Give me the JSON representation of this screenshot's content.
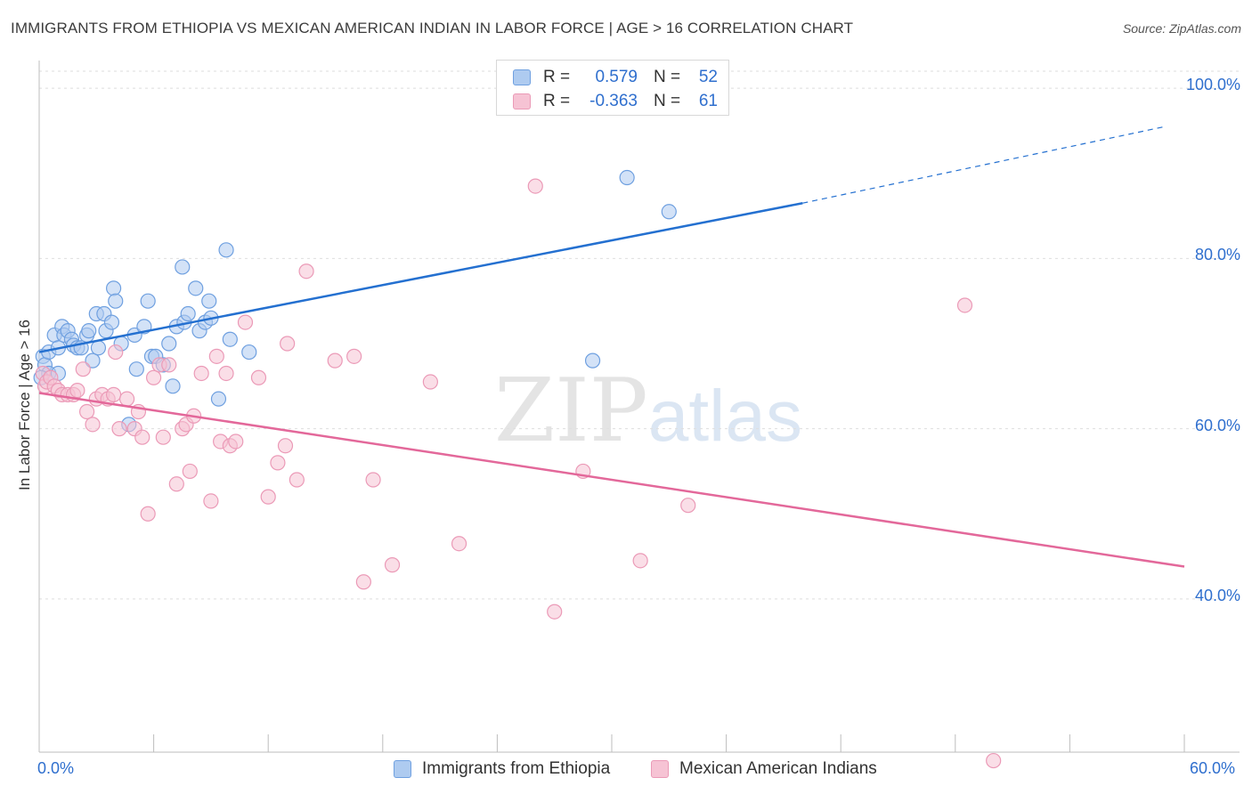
{
  "chart_data": {
    "type": "scatter",
    "title": "IMMIGRANTS FROM ETHIOPIA VS MEXICAN AMERICAN INDIAN IN LABOR FORCE | AGE > 16 CORRELATION CHART",
    "source": "Source: ZipAtlas.com",
    "xlabel": "",
    "ylabel": "In Labor Force | Age > 16",
    "xlim": [
      0,
      60
    ],
    "ylim": [
      22,
      102
    ],
    "x_tick_labels": [
      "0.0%",
      "60.0%"
    ],
    "y_ticks": [
      40,
      60,
      80,
      100
    ],
    "y_tick_labels": [
      "40.0%",
      "60.0%",
      "80.0%",
      "100.0%"
    ],
    "watermark": {
      "zip": "ZIP",
      "atlas": "atlas"
    },
    "legend_stats": [
      {
        "r_label": "R =",
        "r_value": "0.579",
        "n_label": "N =",
        "n_value": "52"
      },
      {
        "r_label": "R =",
        "r_value": "-0.363",
        "n_label": "N =",
        "n_value": "61"
      }
    ],
    "series": [
      {
        "name": "Immigrants from Ethiopia",
        "color": "#6fa0e0",
        "fill": "#aecbf0",
        "trend_color": "#2470d0",
        "trend": {
          "x0": 0,
          "y0": 69.0,
          "x1": 40,
          "y1": 86.5,
          "dash_to_x": 59,
          "dash_to_y": 95.5
        },
        "points": [
          [
            0.2,
            68.5
          ],
          [
            0.3,
            67.5
          ],
          [
            0.5,
            69.0
          ],
          [
            0.5,
            66.5
          ],
          [
            0.8,
            71.0
          ],
          [
            1.0,
            69.5
          ],
          [
            1.2,
            72.0
          ],
          [
            1.3,
            71.0
          ],
          [
            1.5,
            71.5
          ],
          [
            1.7,
            70.5
          ],
          [
            1.8,
            69.8
          ],
          [
            2.0,
            69.5
          ],
          [
            2.2,
            69.5
          ],
          [
            2.5,
            71.0
          ],
          [
            2.6,
            71.5
          ],
          [
            2.8,
            68.0
          ],
          [
            3.0,
            73.5
          ],
          [
            3.1,
            69.5
          ],
          [
            3.4,
            73.5
          ],
          [
            3.5,
            71.5
          ],
          [
            3.8,
            72.5
          ],
          [
            3.9,
            76.5
          ],
          [
            4.0,
            75.0
          ],
          [
            4.3,
            70.0
          ],
          [
            4.7,
            60.5
          ],
          [
            5.0,
            71.0
          ],
          [
            5.1,
            67.0
          ],
          [
            5.5,
            72.0
          ],
          [
            5.7,
            75.0
          ],
          [
            5.9,
            68.5
          ],
          [
            6.1,
            68.5
          ],
          [
            6.5,
            67.5
          ],
          [
            6.8,
            70.0
          ],
          [
            7.0,
            65.0
          ],
          [
            7.2,
            72.0
          ],
          [
            7.5,
            79.0
          ],
          [
            7.6,
            72.5
          ],
          [
            7.8,
            73.5
          ],
          [
            8.2,
            76.5
          ],
          [
            8.4,
            71.5
          ],
          [
            8.7,
            72.5
          ],
          [
            8.9,
            75.0
          ],
          [
            9.0,
            73.0
          ],
          [
            9.4,
            63.5
          ],
          [
            9.8,
            81.0
          ],
          [
            10.0,
            70.5
          ],
          [
            11.0,
            69.0
          ],
          [
            29.0,
            68.0
          ],
          [
            30.8,
            89.5
          ],
          [
            33.0,
            85.5
          ],
          [
            0.1,
            66.0
          ],
          [
            1.0,
            66.5
          ]
        ]
      },
      {
        "name": "Mexican American Indians",
        "color": "#eb9ab7",
        "fill": "#f6c3d4",
        "trend_color": "#e3689a",
        "trend": {
          "x0": 0,
          "y0": 64.2,
          "x1": 60,
          "y1": 43.8
        },
        "points": [
          [
            0.2,
            66.5
          ],
          [
            0.3,
            65.0
          ],
          [
            0.4,
            65.5
          ],
          [
            0.6,
            66.0
          ],
          [
            0.8,
            65.0
          ],
          [
            1.0,
            64.5
          ],
          [
            1.2,
            64.0
          ],
          [
            1.5,
            64.0
          ],
          [
            1.8,
            64.0
          ],
          [
            2.0,
            64.5
          ],
          [
            2.3,
            67.0
          ],
          [
            2.5,
            62.0
          ],
          [
            2.8,
            60.5
          ],
          [
            3.0,
            63.5
          ],
          [
            3.3,
            64.0
          ],
          [
            3.6,
            63.5
          ],
          [
            3.9,
            64.0
          ],
          [
            4.0,
            69.0
          ],
          [
            4.2,
            60.0
          ],
          [
            4.6,
            63.5
          ],
          [
            5.0,
            60.0
          ],
          [
            5.2,
            62.0
          ],
          [
            5.4,
            59.0
          ],
          [
            5.7,
            50.0
          ],
          [
            6.0,
            66.0
          ],
          [
            6.3,
            67.5
          ],
          [
            6.5,
            59.0
          ],
          [
            6.8,
            67.5
          ],
          [
            7.2,
            53.5
          ],
          [
            7.5,
            60.0
          ],
          [
            7.7,
            60.5
          ],
          [
            7.9,
            55.0
          ],
          [
            8.1,
            61.5
          ],
          [
            8.5,
            66.5
          ],
          [
            9.0,
            51.5
          ],
          [
            9.3,
            68.5
          ],
          [
            9.5,
            58.5
          ],
          [
            9.8,
            66.5
          ],
          [
            10.0,
            58.0
          ],
          [
            10.3,
            58.5
          ],
          [
            10.8,
            72.5
          ],
          [
            11.5,
            66.0
          ],
          [
            12.0,
            52.0
          ],
          [
            12.5,
            56.0
          ],
          [
            12.9,
            58.0
          ],
          [
            13.0,
            70.0
          ],
          [
            13.5,
            54.0
          ],
          [
            14.0,
            78.5
          ],
          [
            15.5,
            68.0
          ],
          [
            17.0,
            42.0
          ],
          [
            17.5,
            54.0
          ],
          [
            18.5,
            44.0
          ],
          [
            16.5,
            68.5
          ],
          [
            20.5,
            65.5
          ],
          [
            22.0,
            46.5
          ],
          [
            26.0,
            88.5
          ],
          [
            27.0,
            38.5
          ],
          [
            28.5,
            55.0
          ],
          [
            31.5,
            44.5
          ],
          [
            34.0,
            51.0
          ],
          [
            48.5,
            74.5
          ]
        ]
      }
    ],
    "extra_points": [
      [
        50.0,
        21.0
      ]
    ]
  }
}
